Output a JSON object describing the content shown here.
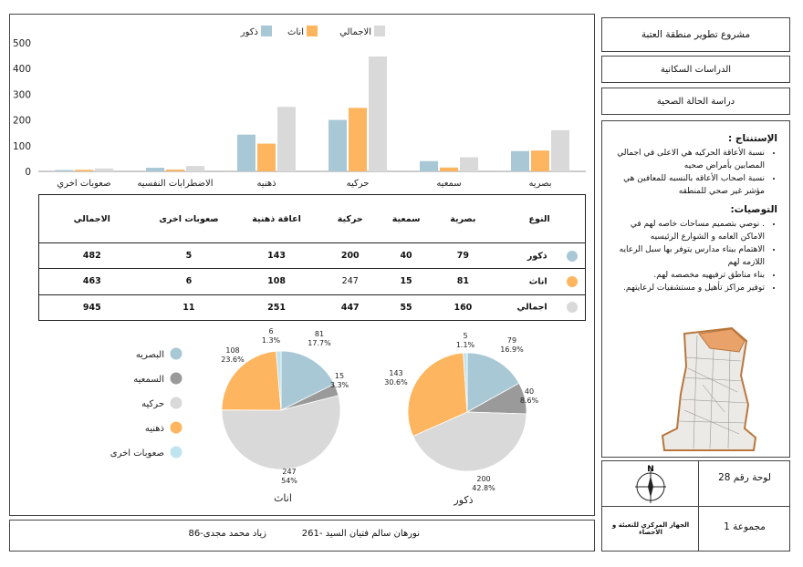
{
  "project_title": "مشروع تطوير منطقة العتبة",
  "study_title": "الدراسات السكانية",
  "topic_title": "دراسة الحالة الصحية",
  "conclusions": {
    "heading": "الإستنتاج :",
    "items": [
      "نسبة الأعاقة الحركيه هي الاعلى في اجمالي المصابين بأمراض صحيه",
      "نسبة اصحاب الأعاقه بالنسبه للمعافين هي مؤشر غير صحي للمنطقه"
    ]
  },
  "recommendations": {
    "heading": "التوصيات:",
    "items": [
      ". نوصي بتصميم مساحات خاصه لهم في الاماكن العامه و الشوارع الرئيسيه",
      "الاهتمام ببناء مدارس يتوفر بها سبل الرعايه اللازمه لهم",
      "بناء مناطق ترفيهيه مخصصه لهم.",
      "توفير مراكز تأهيل و مستشفيات لرعايتهم."
    ]
  },
  "north_label": "N",
  "board_label": "لوحة رقم 28",
  "group_label": "مجموعة 1",
  "source_label": "الجهاز المركزي للتعبئة و الاحصاء",
  "students": [
    "261- نورهان سالم فتيان السيد",
    "86-زياد محمد مجدى"
  ],
  "table": {
    "headers": [
      "النوع",
      "بصرية",
      "سمعية",
      "حركية",
      "اعاقة ذهنية",
      "صعوبات اخرى",
      "الاجمالي"
    ],
    "rows": [
      {
        "label": "ذكور",
        "color": "#a8c8d6",
        "values": [
          "79",
          "40",
          "200",
          "143",
          "5",
          "482"
        ]
      },
      {
        "label": "اناث",
        "color": "#fdb55f",
        "values": [
          "81",
          "15",
          "247",
          "108",
          "6",
          "463"
        ]
      },
      {
        "label": "اجمالي",
        "color": "#d9d9d9",
        "values": [
          "160",
          "55",
          "447",
          "251",
          "11",
          "945"
        ]
      }
    ]
  },
  "chart_data": [
    {
      "type": "bar",
      "categories": [
        "بصريه",
        "سمعيه",
        "حركيه",
        "ذهنيه",
        "الاضطرابات النفسيه",
        "صعوبات اخري"
      ],
      "series": [
        {
          "name": "ذكور",
          "color": "#a8c8d6",
          "values": [
            79,
            40,
            200,
            143,
            14,
            5
          ]
        },
        {
          "name": "اناث",
          "color": "#fdb55f",
          "values": [
            81,
            15,
            247,
            108,
            7,
            6
          ]
        },
        {
          "name": "الاجمالي",
          "color": "#d9d9d9",
          "values": [
            160,
            55,
            447,
            251,
            21,
            11
          ]
        }
      ],
      "ylim": [
        0,
        500
      ],
      "yticks": [
        0,
        100,
        200,
        300,
        400,
        500
      ],
      "legend_position": "top-center"
    },
    {
      "type": "pie",
      "title": "ذكور",
      "slices": [
        {
          "label": "البصريه",
          "value": 79,
          "pct": "16.9%",
          "color": "#a8c8d6"
        },
        {
          "label": "السمعيه",
          "value": 40,
          "pct": "8.6%",
          "color": "#9a9a9a"
        },
        {
          "label": "حركيه",
          "value": 200,
          "pct": "42.8%",
          "color": "#d9d9d9"
        },
        {
          "label": "ذهنيه",
          "value": 143,
          "pct": "30.6%",
          "color": "#fdb55f"
        },
        {
          "label": "صعوبات اخرى",
          "value": 5,
          "pct": "1.1%",
          "color": "#bfe3ef"
        }
      ]
    },
    {
      "type": "pie",
      "title": "اناث",
      "slices": [
        {
          "label": "البصريه",
          "value": 81,
          "pct": "17.7%",
          "color": "#a8c8d6"
        },
        {
          "label": "السمعيه",
          "value": 15,
          "pct": "3.3%",
          "color": "#9a9a9a"
        },
        {
          "label": "حركيه",
          "value": 247,
          "pct": "54%",
          "color": "#d9d9d9"
        },
        {
          "label": "ذهنيه",
          "value": 108,
          "pct": "23.6%",
          "color": "#fdb55f"
        },
        {
          "label": "صعوبات اخرى",
          "value": 6,
          "pct": "1.3%",
          "color": "#bfe3ef"
        }
      ]
    }
  ]
}
